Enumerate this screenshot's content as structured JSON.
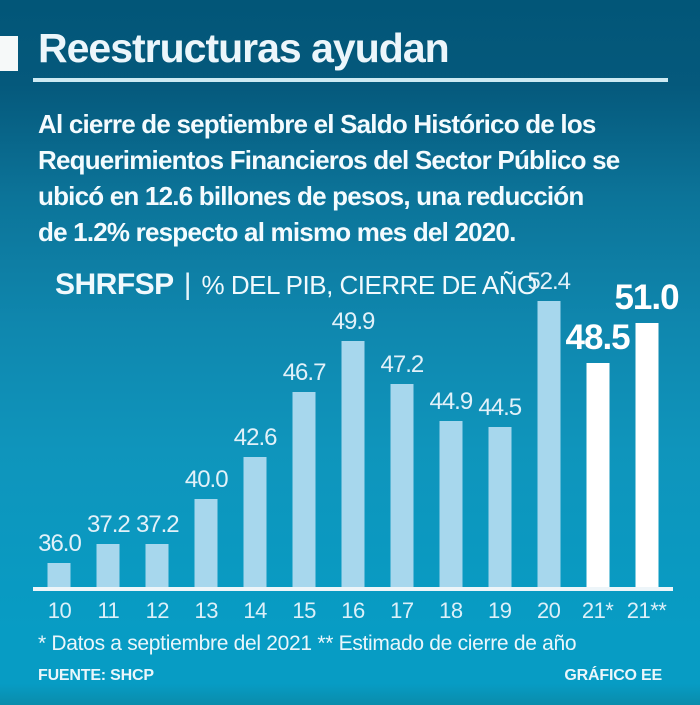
{
  "header": {
    "title": "Reestructuras ayudan"
  },
  "intro": {
    "lines": [
      "Al cierre de septiembre el Saldo Histórico de los",
      "Requerimientos Financieros del Sector Público se",
      "ubicó en 12.6 billones de pesos, una reducción",
      "de 1.2% respecto al mismo mes del 2020."
    ]
  },
  "chart_data": {
    "type": "bar",
    "title": "SHRFSP",
    "separator": "|",
    "subtitle": "% DEL PIB, CIERRE DE AÑO",
    "categories": [
      "10",
      "11",
      "12",
      "13",
      "14",
      "15",
      "16",
      "17",
      "18",
      "19",
      "20",
      "21*",
      "21**"
    ],
    "values": [
      36.0,
      37.2,
      37.2,
      40.0,
      42.6,
      46.7,
      49.9,
      47.2,
      44.9,
      44.5,
      52.4,
      48.5,
      51.0
    ],
    "labels": [
      "36.0",
      "37.2",
      "37.2",
      "40.0",
      "42.6",
      "46.7",
      "49.9",
      "47.2",
      "44.9",
      "44.5",
      "52.4",
      "48.5",
      "51.0"
    ],
    "highlighted": [
      false,
      false,
      false,
      false,
      false,
      false,
      false,
      false,
      false,
      false,
      false,
      true,
      true
    ],
    "xlabel": "",
    "ylabel": "",
    "ylim": [
      34.5,
      54.5
    ],
    "grid": false,
    "legend": "none",
    "bar_color": "#a7d7ed",
    "highlight_bar_color": "#ffffff"
  },
  "footnote": "* Datos a septiembre del 2021 ** Estimado de cierre de año",
  "footer": {
    "source": "FUENTE: SHCP",
    "credit": "GRÁFICO EE"
  },
  "colors": {
    "background_top": "#025678",
    "background_mid": "#0f87ae",
    "background_bottom": "#079cc4",
    "underline": "#cdeaf3",
    "axis_line": "#edf5f9",
    "text": "#f4fbfe",
    "bar": "#a7d7ed",
    "bar_highlight": "#ffffff"
  }
}
